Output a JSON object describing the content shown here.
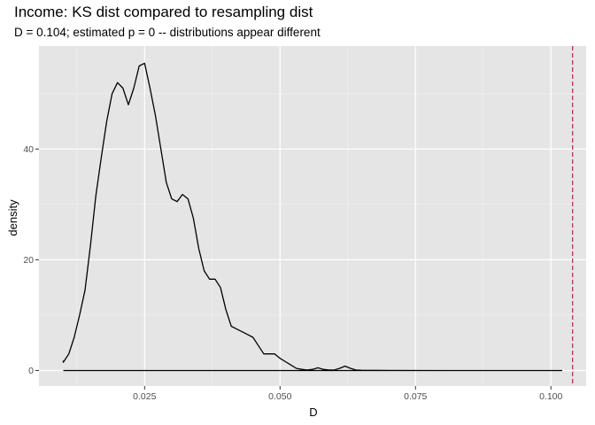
{
  "chart_data": {
    "type": "line",
    "title": "Income: KS dist compared to resampling dist",
    "subtitle": "D = 0.104; estimated p = 0 -- distributions appear different",
    "xlabel": "D",
    "ylabel": "density",
    "xlim": [
      0.0055,
      0.1065
    ],
    "ylim": [
      -2.8,
      58.6
    ],
    "x_ticks": [
      0.025,
      0.05,
      0.075,
      0.1
    ],
    "x_tick_labels": [
      "0.025",
      "0.050",
      "0.075",
      "0.100"
    ],
    "y_ticks": [
      0,
      20,
      40
    ],
    "y_tick_labels": [
      "0",
      "20",
      "40"
    ],
    "grid": true,
    "background": "#e5e5e5",
    "series": [
      {
        "color": "#000000",
        "x": [
          0.01,
          0.01,
          0.011,
          0.012,
          0.013,
          0.014,
          0.015,
          0.016,
          0.017,
          0.018,
          0.019,
          0.02,
          0.021,
          0.022,
          0.023,
          0.024,
          0.025,
          0.026,
          0.027,
          0.028,
          0.029,
          0.03,
          0.031,
          0.032,
          0.033,
          0.034,
          0.035,
          0.036,
          0.037,
          0.038,
          0.039,
          0.04,
          0.041,
          0.042,
          0.043,
          0.044,
          0.045,
          0.046,
          0.047,
          0.048,
          0.049,
          0.05,
          0.051,
          0.052,
          0.053,
          0.054,
          0.055,
          0.056,
          0.057,
          0.058,
          0.059,
          0.06,
          0.061,
          0.062,
          0.063,
          0.064,
          0.065,
          0.07,
          0.08,
          0.09,
          0.1,
          0.102,
          0.102,
          0.01
        ],
        "y": [
          1.8,
          1.5,
          3.0,
          6.0,
          10.0,
          14.5,
          22.5,
          31.5,
          38.5,
          45.0,
          50.0,
          52.0,
          51.0,
          48.0,
          51.0,
          55.0,
          55.5,
          51.0,
          46.0,
          40.0,
          34.0,
          31.0,
          30.5,
          31.8,
          31.0,
          27.5,
          22.0,
          18.0,
          16.5,
          16.5,
          15.0,
          11.0,
          8.0,
          7.5,
          7.0,
          6.5,
          6.0,
          4.5,
          3.0,
          3.0,
          3.0,
          2.2,
          1.6,
          1.0,
          0.4,
          0.2,
          0.1,
          0.2,
          0.5,
          0.2,
          0.1,
          0.1,
          0.4,
          0.8,
          0.4,
          0.1,
          0.05,
          0.02,
          0.0,
          0.0,
          0.0,
          0.0,
          0.0,
          0.0
        ]
      }
    ],
    "vline": {
      "x": 0.104,
      "color": "#b2244a",
      "style": "dashed"
    }
  }
}
